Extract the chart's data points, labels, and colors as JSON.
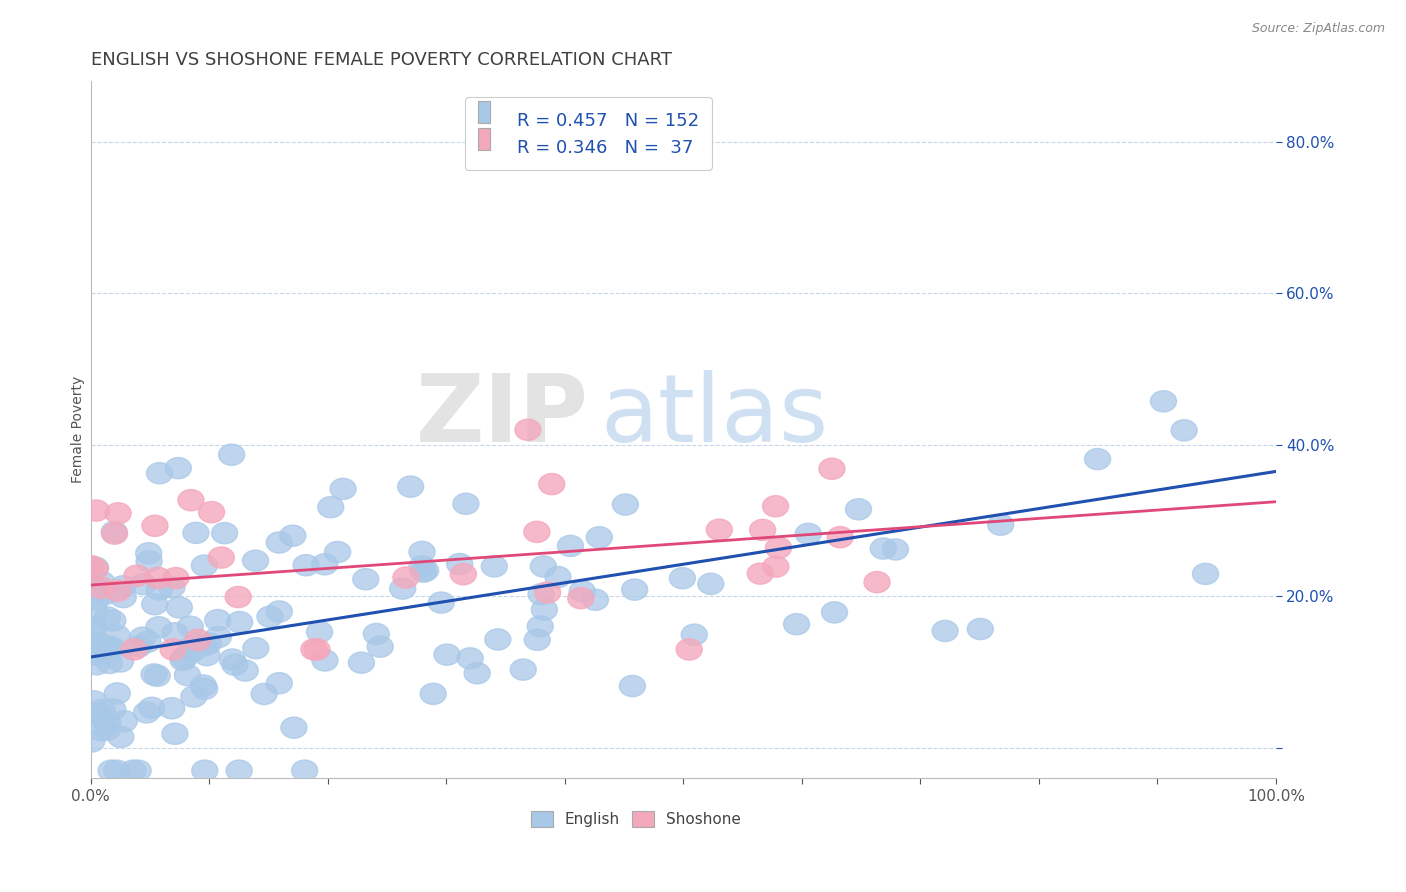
{
  "title": "ENGLISH VS SHOSHONE FEMALE POVERTY CORRELATION CHART",
  "source": "Source: ZipAtlas.com",
  "xlabel": "",
  "ylabel": "Female Poverty",
  "xlim": [
    0.0,
    1.0
  ],
  "ylim": [
    -0.04,
    0.88
  ],
  "xticks": [
    0.0,
    0.1,
    0.2,
    0.3,
    0.4,
    0.5,
    0.6,
    0.7,
    0.8,
    0.9,
    1.0
  ],
  "xticklabels": [
    "0.0%",
    "",
    "",
    "",
    "",
    "",
    "",
    "",
    "",
    "",
    "100.0%"
  ],
  "yticks": [
    0.0,
    0.2,
    0.4,
    0.6,
    0.8
  ],
  "yticklabels": [
    "",
    "20.0%",
    "40.0%",
    "60.0%",
    "80.0%"
  ],
  "english_color": "#a8c8e8",
  "shoshone_color": "#f4a8bc",
  "english_line_color": "#2050b0",
  "shoshone_line_color": "#e04878",
  "english_R": 0.457,
  "english_N": 152,
  "shoshone_R": 0.346,
  "shoshone_N": 37,
  "watermark_zip": "ZIP",
  "watermark_atlas": "atlas",
  "title_color": "#404040",
  "title_fontsize": 13,
  "axis_label_fontsize": 10,
  "tick_fontsize": 11,
  "legend_text_color": "#2050b0",
  "background_color": "#ffffff",
  "grid_color": "#c8d8e8",
  "eng_line_y0": 0.12,
  "eng_line_y1": 0.365,
  "sho_line_y0": 0.215,
  "sho_line_y1": 0.325,
  "english_seed": 42,
  "shoshone_seed": 7
}
